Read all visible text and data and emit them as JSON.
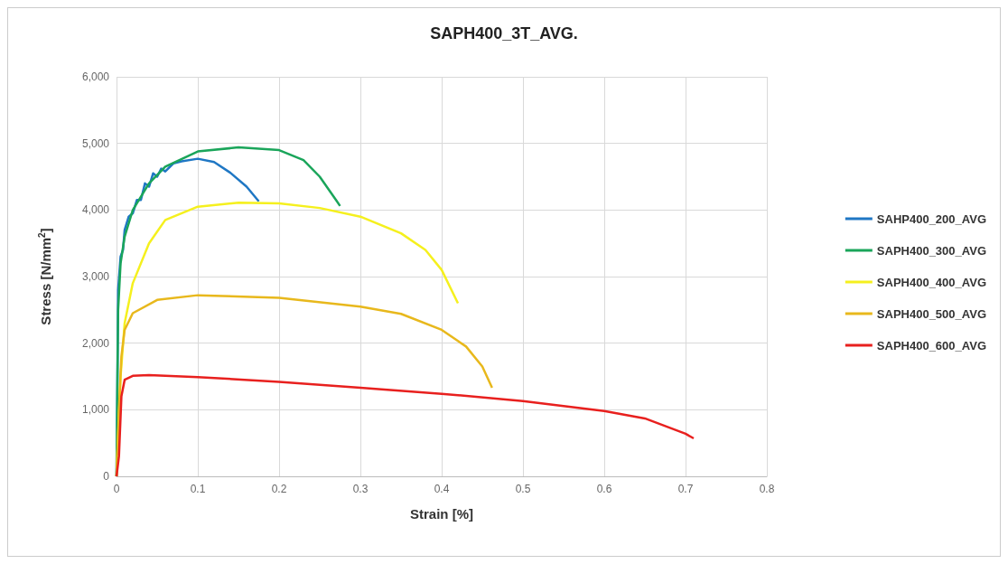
{
  "chart_data": {
    "type": "line",
    "title": "SAPH400_3T_AVG.",
    "xlabel": "Strain [%]",
    "ylabel": "Stress [N/mm$^{2}$]",
    "xlim": [
      0,
      0.8
    ],
    "xticks": [
      0,
      0.1,
      0.2,
      0.3,
      0.4,
      0.5,
      0.6,
      0.7,
      0.8
    ],
    "ylim": [
      0,
      6000
    ],
    "yticks": [
      0,
      {
        "value": 1000,
        "label": "1,000"
      },
      {
        "value": 2000,
        "label": "2,000"
      },
      {
        "value": 3000,
        "label": "3,000"
      },
      {
        "value": 4000,
        "label": "4,000"
      },
      {
        "value": 5000,
        "label": "5,000"
      },
      {
        "value": 6000,
        "label": "6,000"
      }
    ],
    "grid": true,
    "legend": "right",
    "marker": "none",
    "line_style": "solid",
    "series": [
      {
        "name": "SAHP400_200_AVG",
        "color": "#1f77c4",
        "x": [
          0,
          0.002,
          0.005,
          0.008,
          0.01,
          0.015,
          0.02,
          0.025,
          0.03,
          0.035,
          0.04,
          0.045,
          0.05,
          0.055,
          0.06,
          0.07,
          0.08,
          0.1,
          0.12,
          0.14,
          0.16,
          0.175
        ],
        "values": [
          0,
          2800,
          3300,
          3400,
          3700,
          3900,
          3950,
          4150,
          4150,
          4400,
          4350,
          4550,
          4500,
          4620,
          4580,
          4700,
          4730,
          4770,
          4720,
          4560,
          4350,
          4130
        ]
      },
      {
        "name": "SAPH400_300_AVG",
        "color": "#1aa55a",
        "x": [
          0,
          0.002,
          0.005,
          0.01,
          0.02,
          0.04,
          0.06,
          0.1,
          0.15,
          0.2,
          0.23,
          0.25,
          0.27,
          0.275
        ],
        "values": [
          0,
          2500,
          3200,
          3600,
          4000,
          4400,
          4650,
          4880,
          4940,
          4900,
          4750,
          4500,
          4150,
          4060
        ]
      },
      {
        "name": "SAPH400_400_AVG",
        "color": "#f5f01e",
        "x": [
          0,
          0.005,
          0.01,
          0.02,
          0.04,
          0.06,
          0.1,
          0.15,
          0.2,
          0.25,
          0.3,
          0.35,
          0.38,
          0.4,
          0.42
        ],
        "values": [
          0,
          1500,
          2300,
          2900,
          3500,
          3850,
          4050,
          4110,
          4100,
          4030,
          3900,
          3650,
          3400,
          3100,
          2600
        ]
      },
      {
        "name": "SAPH400_500_AVG",
        "color": "#e8b81c",
        "x": [
          0,
          0.003,
          0.006,
          0.01,
          0.02,
          0.05,
          0.1,
          0.2,
          0.3,
          0.35,
          0.4,
          0.43,
          0.45,
          0.462
        ],
        "values": [
          0,
          1000,
          1800,
          2200,
          2450,
          2650,
          2720,
          2680,
          2550,
          2440,
          2200,
          1950,
          1650,
          1330
        ]
      },
      {
        "name": "SAPH400_600_AVG",
        "color": "#e8201e",
        "x": [
          0,
          0.003,
          0.006,
          0.01,
          0.02,
          0.04,
          0.1,
          0.2,
          0.3,
          0.4,
          0.5,
          0.6,
          0.65,
          0.7,
          0.71
        ],
        "values": [
          0,
          300,
          1200,
          1450,
          1510,
          1520,
          1490,
          1420,
          1330,
          1240,
          1130,
          980,
          870,
          640,
          570
        ]
      }
    ]
  }
}
